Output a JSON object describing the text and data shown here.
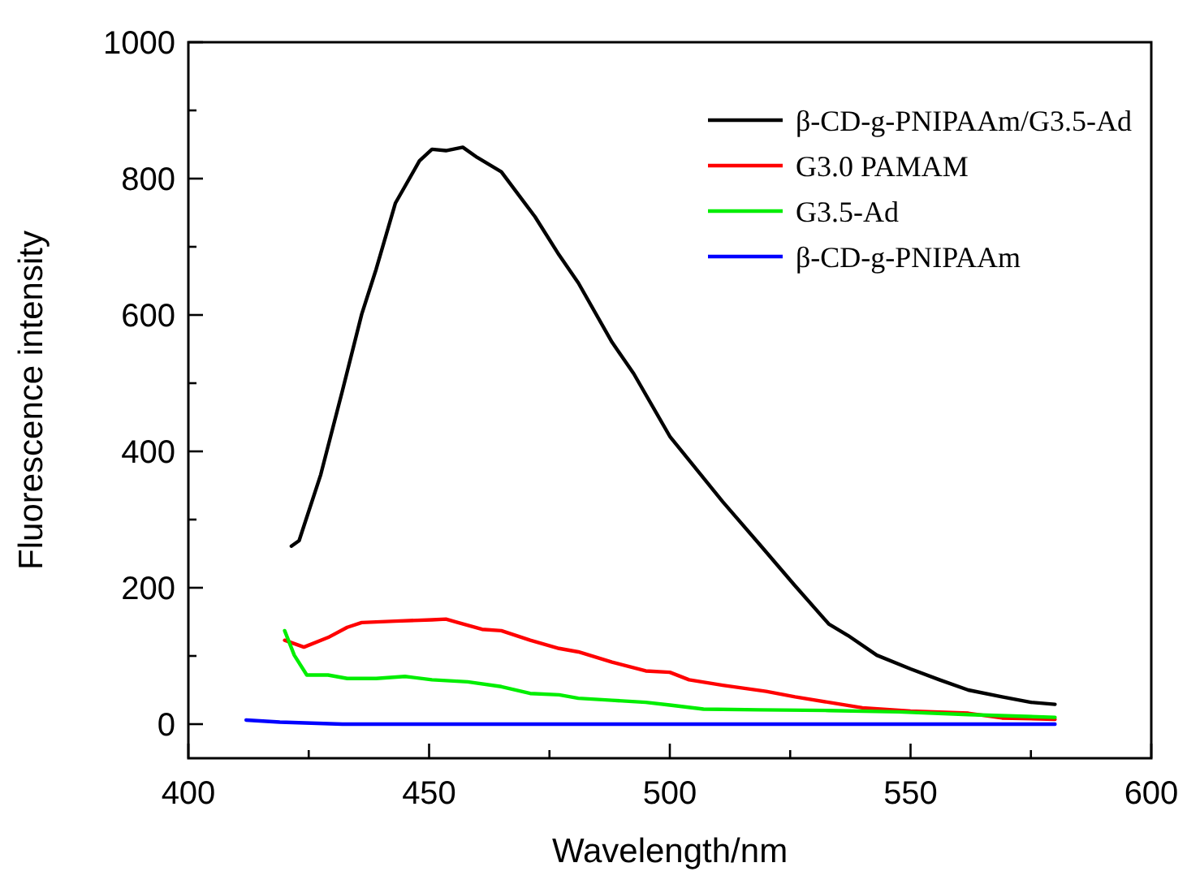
{
  "chart_data": {
    "type": "line",
    "xlabel": "Wavelength/nm",
    "ylabel": "Fluorescence intensity",
    "xlim": [
      400,
      600
    ],
    "ylim": [
      -50,
      1000
    ],
    "xticks": [
      400,
      {
        "value": 425,
        "label": null
      },
      450,
      {
        "value": 475,
        "label": null
      },
      500,
      {
        "value": 525,
        "label": null
      },
      550,
      {
        "value": 575,
        "label": null
      },
      600
    ],
    "yticks": [
      0,
      {
        "value": 100,
        "label": null
      },
      200,
      {
        "value": 300,
        "label": null
      },
      400,
      {
        "value": 500,
        "label": null
      },
      600,
      {
        "value": 700,
        "label": null
      },
      800,
      {
        "value": 900,
        "label": null
      },
      1000
    ],
    "grid": false,
    "legend": "top right",
    "line_style": "solid",
    "marker": "none",
    "series": [
      {
        "name": "β-CD-g-PNIPAAm/G3.5-Ad",
        "color": "#000000",
        "x": [
          421.4,
          423,
          427.5,
          432,
          436,
          439,
          443,
          448,
          450.6,
          453.5,
          457,
          460,
          465,
          472,
          477,
          481,
          488,
          492.5,
          500,
          504,
          511,
          518.6,
          526,
          533,
          537,
          543,
          550,
          556,
          562,
          569,
          575,
          580
        ],
        "values": [
          261,
          269,
          366,
          489,
          601,
          667,
          764,
          826,
          843,
          841,
          846,
          831,
          810,
          744,
          688,
          647,
          560,
          514,
          422,
          387,
          326,
          264,
          203,
          147,
          130,
          101,
          81,
          65,
          50,
          40,
          32,
          29
        ]
      },
      {
        "name": "G3.0 PAMAM",
        "color": "#ff0000",
        "x": [
          420,
          424,
          429,
          433,
          436,
          443,
          450.6,
          453.5,
          456,
          461,
          465,
          471,
          477,
          481,
          488,
          495,
          500,
          504,
          511,
          520,
          526,
          533,
          540,
          550,
          562,
          569,
          580
        ],
        "values": [
          123,
          113,
          127,
          142,
          149,
          151,
          153,
          154,
          149,
          139,
          137,
          123,
          111,
          106,
          91,
          78,
          76,
          65,
          57,
          48,
          40,
          32,
          24,
          19,
          16,
          9,
          7
        ]
      },
      {
        "name": "G3.5-Ad",
        "color": "#00ee00",
        "x": [
          420,
          422,
          424.6,
          429,
          433,
          439,
          445,
          450.6,
          458,
          465,
          471,
          477,
          481,
          488,
          495,
          500,
          507,
          518.6,
          533,
          547.5,
          562,
          580
        ],
        "values": [
          137,
          101,
          72,
          72,
          67,
          67,
          70,
          65,
          62,
          55,
          45,
          43,
          38,
          35,
          32,
          28,
          22,
          21,
          20,
          18,
          14,
          10
        ]
      },
      {
        "name": "β-CD-g-PNIPAAm",
        "color": "#0000ff",
        "x": [
          412,
          419,
          432,
          453.5,
          497,
          580
        ],
        "values": [
          6,
          3,
          0,
          0,
          0,
          0
        ]
      }
    ]
  }
}
